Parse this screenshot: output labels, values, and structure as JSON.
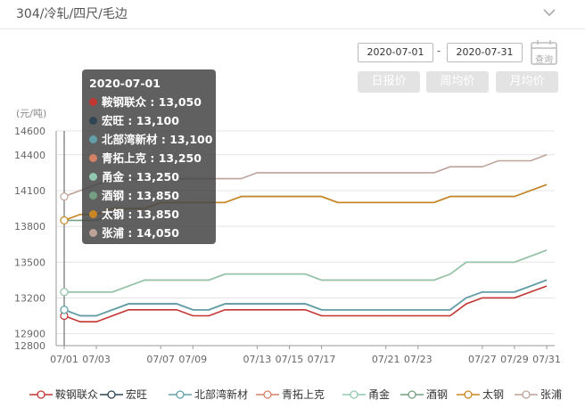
{
  "header": {
    "title": "304/冷轧/四尺/毛边",
    "collapse_icon": "chevron-down-icon"
  },
  "controls": {
    "start_date": "2020-07-01",
    "end_date": "2020-07-31",
    "separator": "-",
    "calendar_query_label": "查询",
    "period_buttons": [
      "日报价",
      "周均价",
      "月均价"
    ]
  },
  "chart_data": {
    "type": "line",
    "unit_label": "(元/吨)",
    "x": [
      "07/01",
      "07/02",
      "07/03",
      "07/04",
      "07/05",
      "07/06",
      "07/07",
      "07/08",
      "07/09",
      "07/10",
      "07/11",
      "07/12",
      "07/13",
      "07/14",
      "07/15",
      "07/16",
      "07/17",
      "07/18",
      "07/19",
      "07/20",
      "07/21",
      "07/22",
      "07/23",
      "07/24",
      "07/25",
      "07/26",
      "07/27",
      "07/28",
      "07/29",
      "07/30",
      "07/31"
    ],
    "x_tick_labels": [
      "07/01",
      "07/03",
      "07/07",
      "07/09",
      "07/13",
      "07/15",
      "07/17",
      "07/21",
      "07/23",
      "07/27",
      "07/29",
      "07/31"
    ],
    "y_ticks": [
      12800,
      12900,
      13200,
      13500,
      13800,
      14100,
      14400,
      14600
    ],
    "ylim": [
      12800,
      14600
    ],
    "grid": true,
    "legend_position": "bottom",
    "series": [
      {
        "name": "鞍钢联众",
        "color": "#c23531",
        "values": [
          13050,
          13000,
          13000,
          13050,
          13100,
          13100,
          13100,
          13100,
          13050,
          13050,
          13100,
          13100,
          13100,
          13100,
          13100,
          13100,
          13050,
          13050,
          13050,
          13050,
          13050,
          13050,
          13050,
          13050,
          13050,
          13150,
          13200,
          13200,
          13200,
          13250,
          13300
        ]
      },
      {
        "name": "宏旺",
        "color": "#2f4554",
        "values": [
          13100,
          13050,
          13050,
          13100,
          13150,
          13150,
          13150,
          13150,
          13100,
          13100,
          13150,
          13150,
          13150,
          13150,
          13150,
          13150,
          13100,
          13100,
          13100,
          13100,
          13100,
          13100,
          13100,
          13100,
          13100,
          13200,
          13250,
          13250,
          13250,
          13300,
          13350
        ]
      },
      {
        "name": "北部湾新材",
        "color": "#61a0a8",
        "values": [
          13100,
          13050,
          13050,
          13100,
          13150,
          13150,
          13150,
          13150,
          13100,
          13100,
          13150,
          13150,
          13150,
          13150,
          13150,
          13150,
          13100,
          13100,
          13100,
          13100,
          13100,
          13100,
          13100,
          13100,
          13100,
          13200,
          13250,
          13250,
          13250,
          13300,
          13350
        ]
      },
      {
        "name": "青拓上克",
        "color": "#d48265",
        "values": [
          13250,
          13250,
          13250,
          13250,
          13300,
          13350,
          13350,
          13350,
          13350,
          13350,
          13400,
          13400,
          13400,
          13400,
          13400,
          13400,
          13350,
          13350,
          13350,
          13350,
          13350,
          13350,
          13350,
          13350,
          13400,
          13500,
          13500,
          13500,
          13500,
          13550,
          13600
        ]
      },
      {
        "name": "甬金",
        "color": "#91c7ae",
        "values": [
          13250,
          13250,
          13250,
          13250,
          13300,
          13350,
          13350,
          13350,
          13350,
          13350,
          13400,
          13400,
          13400,
          13400,
          13400,
          13400,
          13350,
          13350,
          13350,
          13350,
          13350,
          13350,
          13350,
          13350,
          13400,
          13500,
          13500,
          13500,
          13500,
          13550,
          13600
        ]
      },
      {
        "name": "酒钢",
        "color": "#749f83",
        "values": [
          13850,
          13850,
          13850,
          13900,
          13950,
          13950,
          14000,
          14000,
          14000,
          14000,
          14000,
          14050,
          14050,
          14050,
          14050,
          14050,
          14050,
          14000,
          14000,
          14000,
          14000,
          14000,
          14000,
          14000,
          14050,
          14050,
          14050,
          14050,
          14050,
          14100,
          14150
        ]
      },
      {
        "name": "太钢",
        "color": "#ca8622",
        "values": [
          13850,
          13900,
          13900,
          13950,
          13950,
          13950,
          14000,
          14000,
          14000,
          14000,
          14000,
          14050,
          14050,
          14050,
          14050,
          14050,
          14050,
          14000,
          14000,
          14000,
          14000,
          14000,
          14000,
          14000,
          14050,
          14050,
          14050,
          14050,
          14050,
          14100,
          14150
        ]
      },
      {
        "name": "张浦",
        "color": "#bda29a",
        "values": [
          14050,
          14100,
          14150,
          14200,
          14200,
          14200,
          14200,
          14200,
          14200,
          14200,
          14200,
          14200,
          14250,
          14250,
          14250,
          14250,
          14250,
          14250,
          14250,
          14250,
          14250,
          14250,
          14250,
          14250,
          14300,
          14300,
          14300,
          14350,
          14350,
          14350,
          14400
        ]
      }
    ],
    "tooltip": {
      "date": "2020-07-01",
      "rows": [
        "鞍钢联众 : 13,050",
        "宏旺 : 13,100",
        "北部湾新材 : 13,100",
        "青拓上克 : 13,250",
        "甬金 : 13,250",
        "酒钢 : 13,850",
        "太钢 : 13,850",
        "张浦 : 14,050"
      ]
    }
  }
}
